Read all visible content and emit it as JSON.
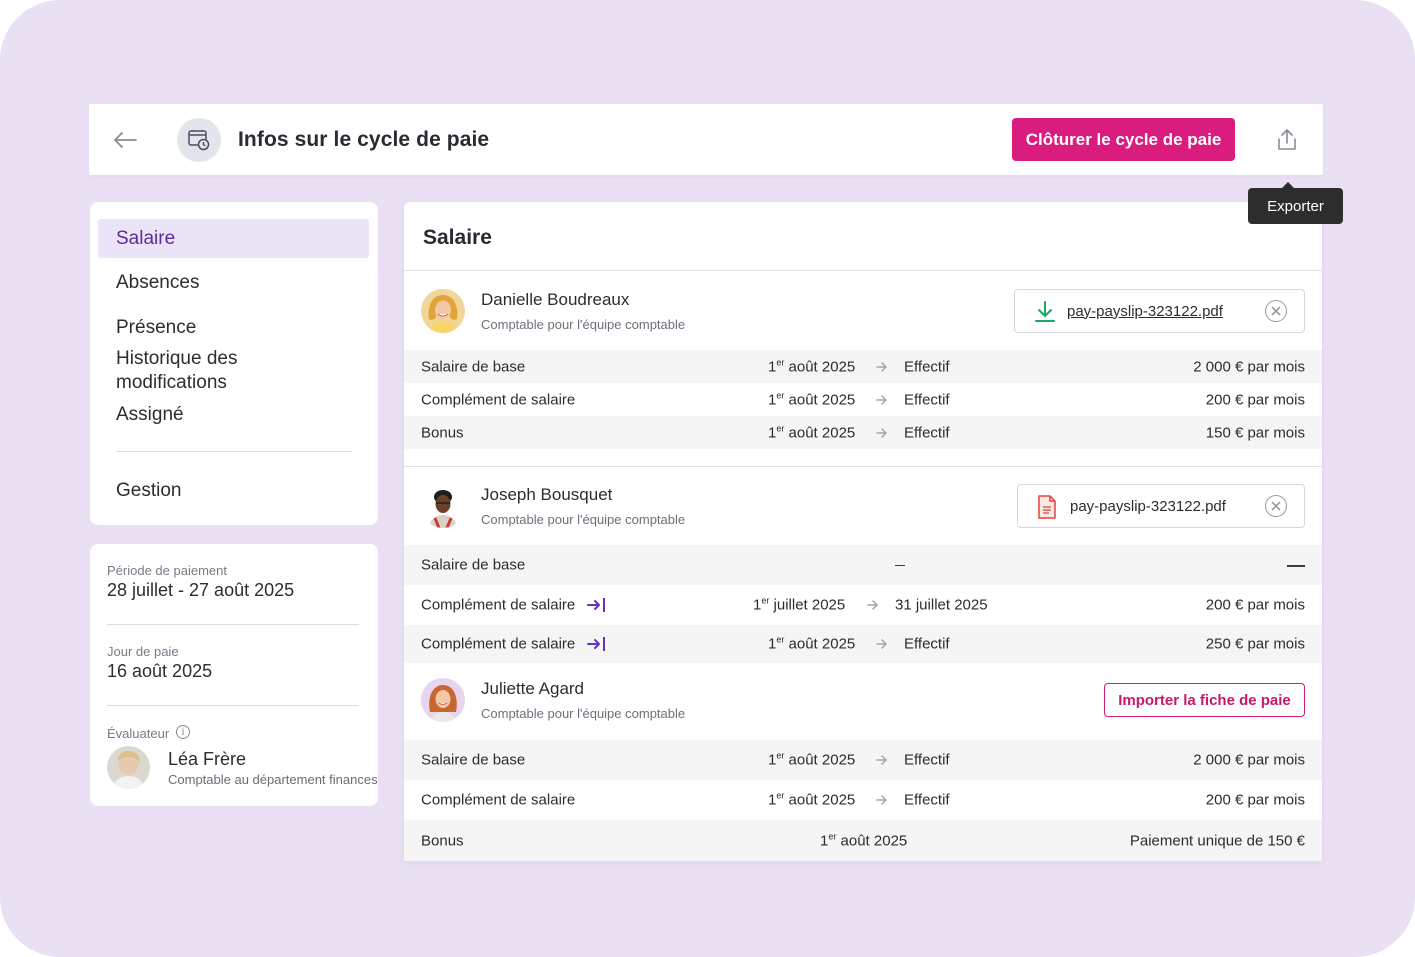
{
  "header": {
    "title": "Infos sur le cycle de paie",
    "close_cycle_label": "Clôturer le cycle de paie",
    "export_tooltip": "Exporter"
  },
  "nav": {
    "items": [
      {
        "label": "Salaire",
        "active": true
      },
      {
        "label": "Absences"
      },
      {
        "label": "Présence"
      },
      {
        "label": "Historique des modifications"
      },
      {
        "label": "Assigné"
      },
      {
        "label": "Gestion"
      }
    ]
  },
  "info": {
    "period_label": "Période de paiement",
    "period_value": "28 juillet - 27 août 2025",
    "payday_label": "Jour de paie",
    "payday_value": "16 août 2025",
    "reviewer_label": "Évaluateur",
    "reviewer_name": "Léa Frère",
    "reviewer_role": "Comptable au département finances"
  },
  "main": {
    "title": "Salaire",
    "employees": [
      {
        "name": "Danielle Boudreaux",
        "role": "Comptable pour l'équipe comptable",
        "file": "pay-payslip-323122.pdf",
        "rows": [
          {
            "label": "Salaire de base",
            "start_num": "1",
            "start_sup": "er",
            "start_rest": " août 2025",
            "end": "Effectif",
            "amount": "2 000 € par mois"
          },
          {
            "label": "Complément de salaire",
            "start_num": "1",
            "start_sup": "er",
            "start_rest": " août 2025",
            "end": "Effectif",
            "amount": "200 € par mois"
          },
          {
            "label": "Bonus",
            "start_num": "1",
            "start_sup": "er",
            "start_rest": " août 2025",
            "end": "Effectif",
            "amount": "150 € par mois"
          }
        ]
      },
      {
        "name": "Joseph Bousquet",
        "role": "Comptable pour l'équipe comptable",
        "file": "pay-payslip-323122.pdf",
        "rows": [
          {
            "label": "Salaire de base"
          },
          {
            "label": "Complément de salaire",
            "start_num": "1",
            "start_sup": "er",
            "start_rest": " juillet 2025",
            "end": "31 juillet 2025",
            "amount": "200 € par mois"
          },
          {
            "label": "Complément de salaire",
            "start_num": "1",
            "start_sup": "er",
            "start_rest": " août 2025",
            "end": "Effectif",
            "amount": "250 € par mois"
          }
        ]
      },
      {
        "name": "Juliette Agard",
        "role": "Comptable pour l'équipe comptable",
        "import_label": "Importer la fiche de paie",
        "rows": [
          {
            "label": "Salaire de base",
            "start_num": "1",
            "start_sup": "er",
            "start_rest": " août 2025",
            "end": "Effectif",
            "amount": "2 000 € par mois"
          },
          {
            "label": "Complément de salaire",
            "start_num": "1",
            "start_sup": "er",
            "start_rest": " août 2025",
            "end": "Effectif",
            "amount": "200 € par mois"
          },
          {
            "label": "Bonus",
            "start_num": "1",
            "start_sup": "er",
            "start_rest": " août 2025",
            "amount": "Paiement unique de 150 €"
          }
        ]
      }
    ]
  },
  "colors": {
    "background": "#e9e0f3",
    "accent": "#da1c7e",
    "nav_active": "#ebe3f6",
    "nav_active_text": "#5d2a9a",
    "download_green": "#1aa865",
    "pdf_red": "#e0453e",
    "mark_purple": "#6b2fc0"
  }
}
